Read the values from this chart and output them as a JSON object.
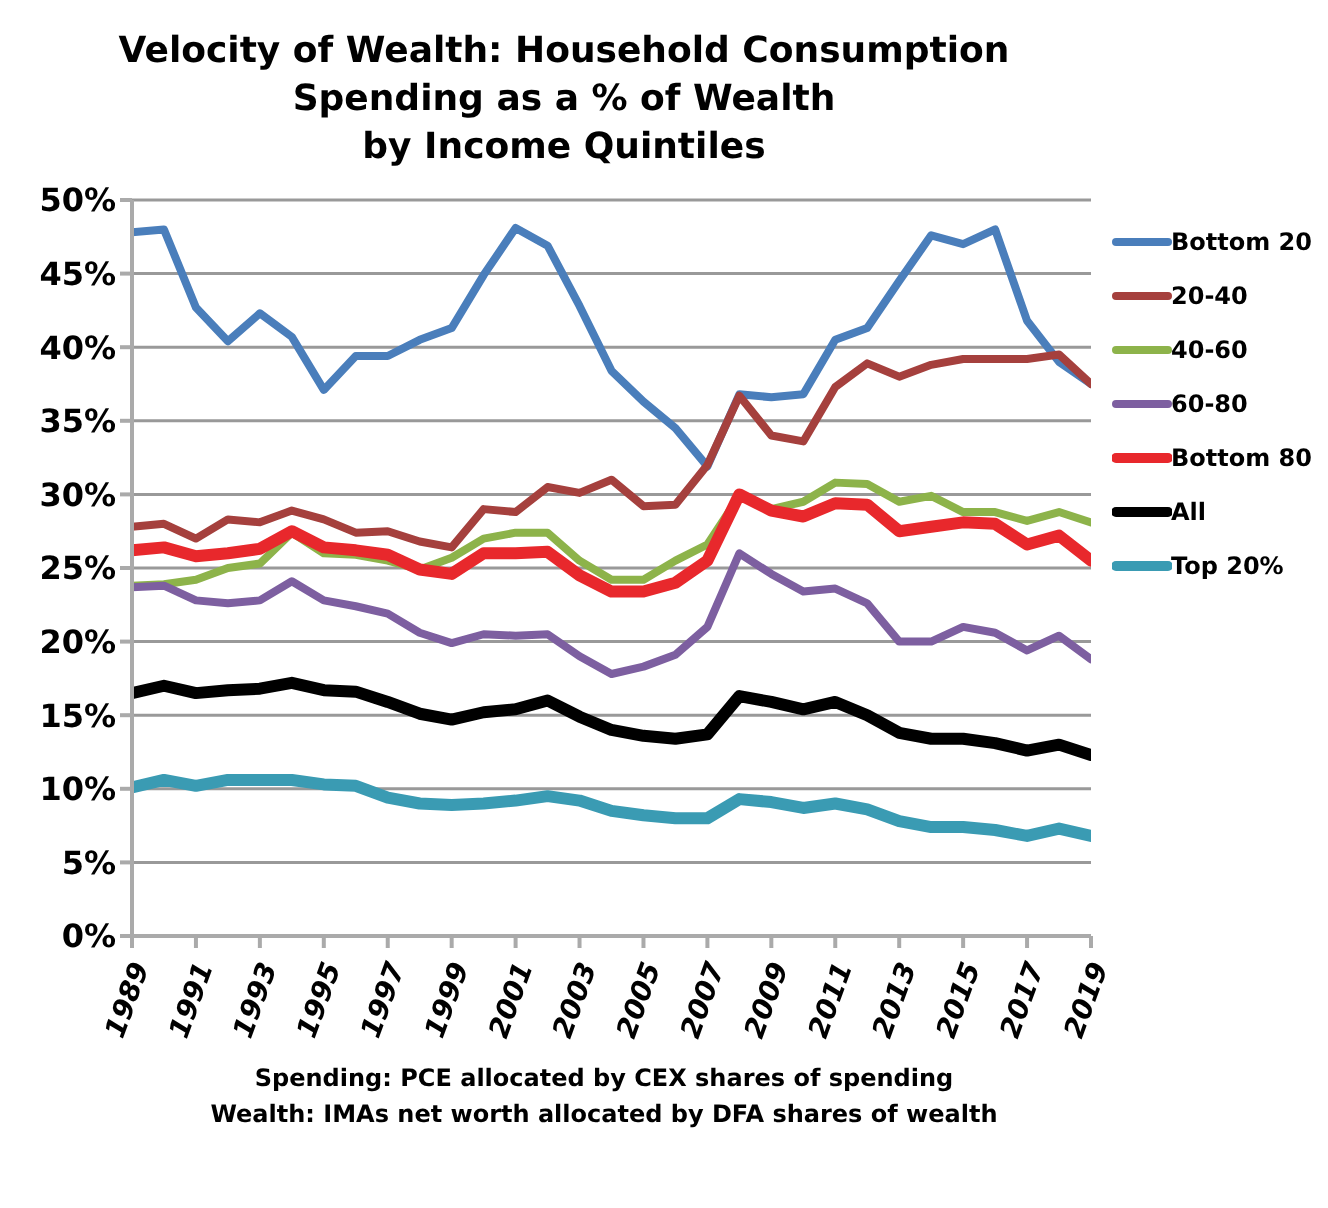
{
  "chart_data": {
    "type": "line",
    "title": "Velocity of Wealth: Household Consumption\nSpending as a % of Wealth\nby Income Quintiles",
    "x": [
      1989,
      1990,
      1991,
      1992,
      1993,
      1994,
      1995,
      1996,
      1997,
      1998,
      1999,
      2000,
      2001,
      2002,
      2003,
      2004,
      2005,
      2006,
      2007,
      2008,
      2009,
      2010,
      2011,
      2012,
      2013,
      2014,
      2015,
      2016,
      2017,
      2018,
      2019
    ],
    "xlim": [
      1989,
      2019
    ],
    "xticks": [
      1989,
      1991,
      1993,
      1995,
      1997,
      1999,
      2001,
      2003,
      2005,
      2007,
      2009,
      2011,
      2013,
      2015,
      2017,
      2019
    ],
    "ylim": [
      0,
      50
    ],
    "yticks": [
      {
        "value": 0,
        "label": "0%"
      },
      {
        "value": 5,
        "label": "5%"
      },
      {
        "value": 10,
        "label": "10%"
      },
      {
        "value": 15,
        "label": "15%"
      },
      {
        "value": 20,
        "label": "20%"
      },
      {
        "value": 25,
        "label": "25%"
      },
      {
        "value": 30,
        "label": "30%"
      },
      {
        "value": 35,
        "label": "35%"
      },
      {
        "value": 40,
        "label": "40%"
      },
      {
        "value": 45,
        "label": "45%"
      },
      {
        "value": 50,
        "label": "50%"
      }
    ],
    "grid": "y",
    "legend": "right",
    "marker": "none",
    "line_style": "solid",
    "series": [
      {
        "name": "Bottom 20",
        "color": "#4a7ebb",
        "values": [
          47.8,
          48.0,
          42.7,
          40.4,
          42.3,
          40.7,
          37.1,
          39.4,
          39.4,
          40.5,
          41.3,
          44.9,
          48.1,
          46.9,
          42.8,
          38.4,
          36.3,
          34.5,
          31.9,
          36.8,
          36.6,
          36.8,
          40.5,
          41.3,
          44.5,
          47.6,
          47.0,
          48.0,
          41.8,
          39.0,
          37.5
        ]
      },
      {
        "name": "20-40",
        "color": "#a5403d",
        "values": [
          27.8,
          28.0,
          27.0,
          28.3,
          28.1,
          28.9,
          28.3,
          27.4,
          27.5,
          26.8,
          26.4,
          29.0,
          28.8,
          30.5,
          30.1,
          31.0,
          29.2,
          29.3,
          32.0,
          36.7,
          34.0,
          33.6,
          37.3,
          38.9,
          38.0,
          38.8,
          39.2,
          39.2,
          39.2,
          39.5,
          37.5
        ]
      },
      {
        "name": "40-60",
        "color": "#8db34a",
        "values": [
          23.8,
          23.9,
          24.2,
          25.0,
          25.3,
          27.4,
          26.0,
          25.9,
          25.5,
          24.9,
          25.7,
          27.0,
          27.4,
          27.4,
          25.5,
          24.2,
          24.2,
          25.5,
          26.6,
          29.9,
          29.0,
          29.5,
          30.8,
          30.7,
          29.5,
          29.9,
          28.8,
          28.8,
          28.2,
          28.8,
          28.1
        ]
      },
      {
        "name": "60-80",
        "color": "#7d5fa0",
        "values": [
          23.7,
          23.8,
          22.8,
          22.6,
          22.8,
          24.1,
          22.8,
          22.4,
          21.9,
          20.6,
          19.9,
          20.5,
          20.4,
          20.5,
          19.0,
          17.8,
          18.3,
          19.1,
          21.0,
          26.0,
          24.6,
          23.4,
          23.6,
          22.6,
          20.0,
          20.0,
          21.0,
          20.6,
          19.4,
          20.4,
          18.8
        ]
      },
      {
        "name": "Bottom 80",
        "color": "#e8282c",
        "values": [
          26.2,
          26.4,
          25.8,
          26.0,
          26.3,
          27.5,
          26.4,
          26.2,
          25.9,
          24.9,
          24.6,
          26.0,
          26.0,
          26.1,
          24.5,
          23.4,
          23.4,
          24.0,
          25.5,
          30.0,
          28.9,
          28.5,
          29.4,
          29.3,
          27.5,
          27.8,
          28.1,
          28.0,
          26.6,
          27.2,
          25.5
        ]
      },
      {
        "name": "All",
        "color": "#000000",
        "values": [
          16.5,
          17.0,
          16.5,
          16.7,
          16.8,
          17.2,
          16.7,
          16.6,
          15.9,
          15.1,
          14.7,
          15.2,
          15.4,
          16.0,
          14.9,
          14.0,
          13.6,
          13.4,
          13.7,
          16.3,
          15.9,
          15.4,
          15.9,
          15.0,
          13.8,
          13.4,
          13.4,
          13.1,
          12.6,
          13.0,
          12.3
        ]
      },
      {
        "name": "Top 20%",
        "color": "#3a9bb3",
        "values": [
          10.1,
          10.6,
          10.2,
          10.6,
          10.6,
          10.6,
          10.3,
          10.2,
          9.4,
          9.0,
          8.9,
          9.0,
          9.2,
          9.5,
          9.2,
          8.5,
          8.2,
          8.0,
          8.0,
          9.3,
          9.1,
          8.7,
          9.0,
          8.6,
          7.8,
          7.4,
          7.4,
          7.2,
          6.8,
          7.3,
          6.8
        ]
      }
    ],
    "annotations": [
      "Spending: PCE allocated by CEX shares of spending",
      "Wealth: IMAs net worth allocated by DFA shares of wealth"
    ]
  }
}
